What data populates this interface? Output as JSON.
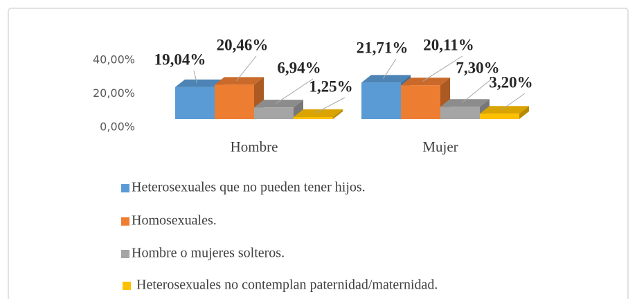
{
  "chart_data": {
    "type": "bar3d",
    "categories": [
      "Hombre",
      "Mujer"
    ],
    "series": [
      {
        "name": "Heterosexuales que no pueden tener hijos.",
        "color": "#5b9bd5",
        "values": [
          19.04,
          21.71
        ],
        "value_labels": [
          "19,04%",
          "21,71%"
        ]
      },
      {
        "name": "Homosexuales.",
        "color": "#ed7d31",
        "values": [
          20.46,
          20.11
        ],
        "value_labels": [
          "20,46%",
          "20,11%"
        ]
      },
      {
        "name": "Hombre o mujeres solteros.",
        "color": "#a5a5a5",
        "values": [
          6.94,
          7.3
        ],
        "value_labels": [
          "6,94%",
          "7,30%"
        ]
      },
      {
        "name": "Heterosexuales no contemplan paternidad/maternidad.",
        "color": "#ffc000",
        "values": [
          1.25,
          3.2
        ],
        "value_labels": [
          "1,25%",
          "3,20%"
        ]
      }
    ],
    "ylim": [
      0,
      40
    ],
    "yticks": [
      {
        "value": 0,
        "label": "0,00%"
      },
      {
        "value": 20,
        "label": "20,00%"
      },
      {
        "value": 40,
        "label": "40,00%"
      }
    ],
    "grid": false
  }
}
